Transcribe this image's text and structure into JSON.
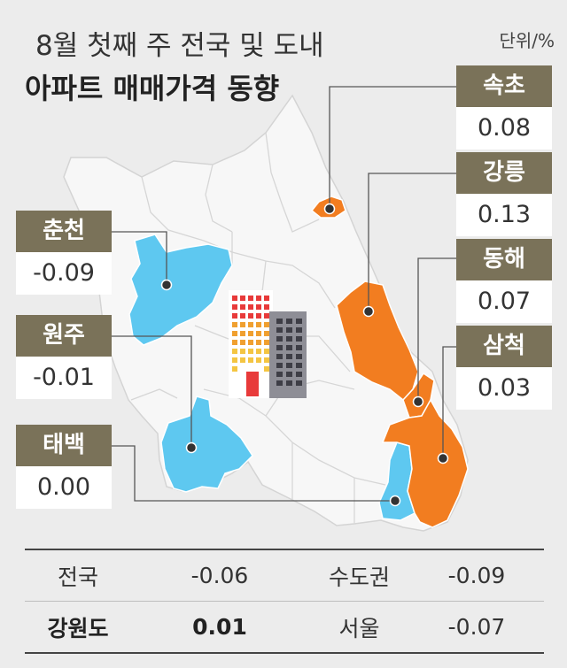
{
  "title": {
    "line1": "8월 첫째 주 전국 및 도내",
    "line2": "아파트 매매가격 동향"
  },
  "unit": "단위/%",
  "colors": {
    "background": "#ececec",
    "map_base": "#f7f7f7",
    "decrease": "#5ec8f0",
    "increase": "#f27d20",
    "label_header": "#7a7259"
  },
  "regions": [
    {
      "name": "속초",
      "value": "0.08",
      "trend": "increase"
    },
    {
      "name": "강릉",
      "value": "0.13",
      "trend": "increase"
    },
    {
      "name": "동해",
      "value": "0.07",
      "trend": "increase"
    },
    {
      "name": "삼척",
      "value": "0.03",
      "trend": "increase"
    },
    {
      "name": "춘천",
      "value": "-0.09",
      "trend": "decrease"
    },
    {
      "name": "원주",
      "value": "-0.01",
      "trend": "decrease"
    },
    {
      "name": "태백",
      "value": "0.00",
      "trend": "decrease"
    }
  ],
  "icon": "apartment-building-icon",
  "summary": [
    {
      "label1": "전국",
      "value1": "-0.06",
      "label2": "수도권",
      "value2": "-0.09"
    },
    {
      "label1": "강원도",
      "value1": "0.01",
      "label2": "서울",
      "value2": "-0.07"
    }
  ]
}
